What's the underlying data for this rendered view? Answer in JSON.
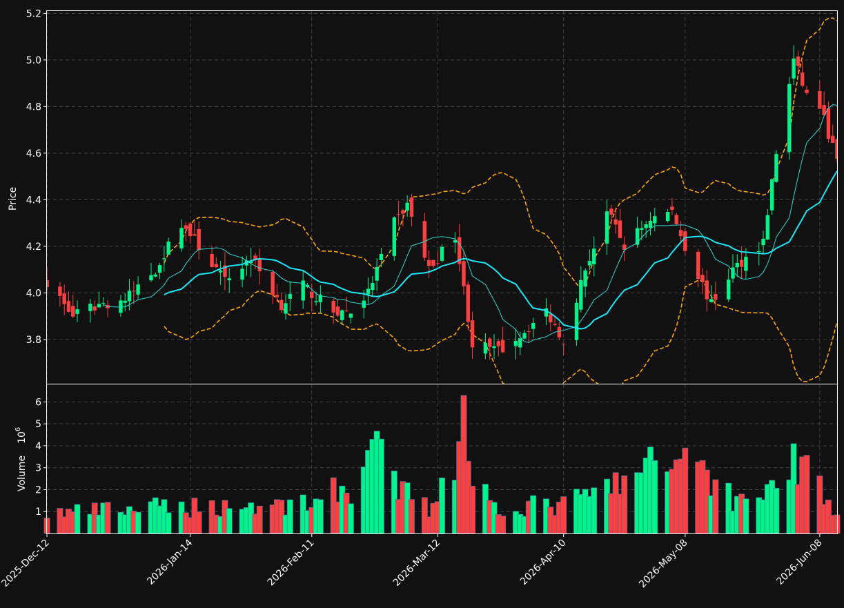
{
  "colors": {
    "background": "#111111",
    "up": "#00f28a",
    "down": "#ff4040",
    "ma_fast": "#2fd7d7",
    "ma_slow": "#19e8f8",
    "bands": "#ffa500",
    "grid": "#444444"
  },
  "chart_data": {
    "type": "candlestick",
    "price_panel": {
      "ylabel": "Price",
      "ylim": [
        3.61,
        5.21
      ],
      "yticks": [
        "3.8",
        "4.0",
        "4.2",
        "4.4",
        "4.6",
        "4.8",
        "5.0",
        "5.2"
      ],
      "grid": true
    },
    "volume_panel": {
      "ylabel": "Volume",
      "exponent_label": "10",
      "exponent": "6",
      "ylim": [
        0.0,
        6.8
      ],
      "yticks": [
        "1",
        "2",
        "3",
        "4",
        "5",
        "6"
      ],
      "grid": true
    },
    "x_start": "2025-12-12",
    "x_end": "2026-06-12",
    "xticks": [
      "2025-Dec-12",
      "2026-Jan-14",
      "2026-Feb-11",
      "2026-Mar-12",
      "2026-Apr-10",
      "2026-May-08",
      "2026-Jun-08"
    ],
    "xtick_dates": [
      "2025-12-12",
      "2026-01-14",
      "2026-02-11",
      "2026-03-12",
      "2026-04-10",
      "2026-05-08",
      "2026-06-08"
    ],
    "close_anchors": [
      [
        "2025-12-12",
        4.05
      ],
      [
        "2025-12-18",
        3.9
      ],
      [
        "2025-12-24",
        3.95
      ],
      [
        "2025-12-30",
        3.97
      ],
      [
        "2026-01-06",
        4.1
      ],
      [
        "2026-01-12",
        4.3
      ],
      [
        "2026-01-16",
        4.2
      ],
      [
        "2026-01-22",
        4.05
      ],
      [
        "2026-01-28",
        4.15
      ],
      [
        "2026-02-04",
        3.95
      ],
      [
        "2026-02-09",
        4.03
      ],
      [
        "2026-02-16",
        3.92
      ],
      [
        "2026-02-20",
        3.92
      ],
      [
        "2026-02-24",
        4.0
      ],
      [
        "2026-03-02",
        4.3
      ],
      [
        "2026-03-05",
        4.38
      ],
      [
        "2026-03-10",
        4.1
      ],
      [
        "2026-03-16",
        4.25
      ],
      [
        "2026-03-20",
        3.78
      ],
      [
        "2026-03-26",
        3.75
      ],
      [
        "2026-03-31",
        3.82
      ],
      [
        "2026-04-06",
        3.92
      ],
      [
        "2026-04-10",
        3.8
      ],
      [
        "2026-04-15",
        4.1
      ],
      [
        "2026-04-20",
        4.35
      ],
      [
        "2026-04-24",
        4.2
      ],
      [
        "2026-04-30",
        4.32
      ],
      [
        "2026-05-05",
        4.35
      ],
      [
        "2026-05-08",
        4.2
      ],
      [
        "2026-05-14",
        3.95
      ],
      [
        "2026-05-19",
        4.1
      ],
      [
        "2026-05-26",
        4.22
      ],
      [
        "2026-05-29",
        4.6
      ],
      [
        "2026-06-02",
        5.0
      ],
      [
        "2026-06-05",
        4.85
      ],
      [
        "2026-06-08",
        4.8
      ],
      [
        "2026-06-12",
        4.57
      ]
    ],
    "volume_anchors": [
      [
        "2025-12-12",
        1.0
      ],
      [
        "2026-01-10",
        1.3
      ],
      [
        "2026-02-05",
        1.4
      ],
      [
        "2026-02-20",
        2.2
      ],
      [
        "2026-02-25",
        4.3
      ],
      [
        "2026-03-01",
        2.5
      ],
      [
        "2026-03-10",
        1.2
      ],
      [
        "2026-03-17",
        4.2
      ],
      [
        "2026-03-18",
        6.3
      ],
      [
        "2026-03-19",
        3.3
      ],
      [
        "2026-03-25",
        1.3
      ],
      [
        "2026-04-10",
        1.4
      ],
      [
        "2026-04-21",
        2.3
      ],
      [
        "2026-05-08",
        3.9
      ],
      [
        "2026-05-20",
        1.6
      ],
      [
        "2026-06-01",
        2.8
      ],
      [
        "2026-06-02",
        4.1
      ],
      [
        "2026-06-04",
        3.5
      ],
      [
        "2026-06-12",
        1.0
      ]
    ],
    "ma_fast_window": 10,
    "ma_slow_window": 20,
    "band_width_sigma": 2
  }
}
